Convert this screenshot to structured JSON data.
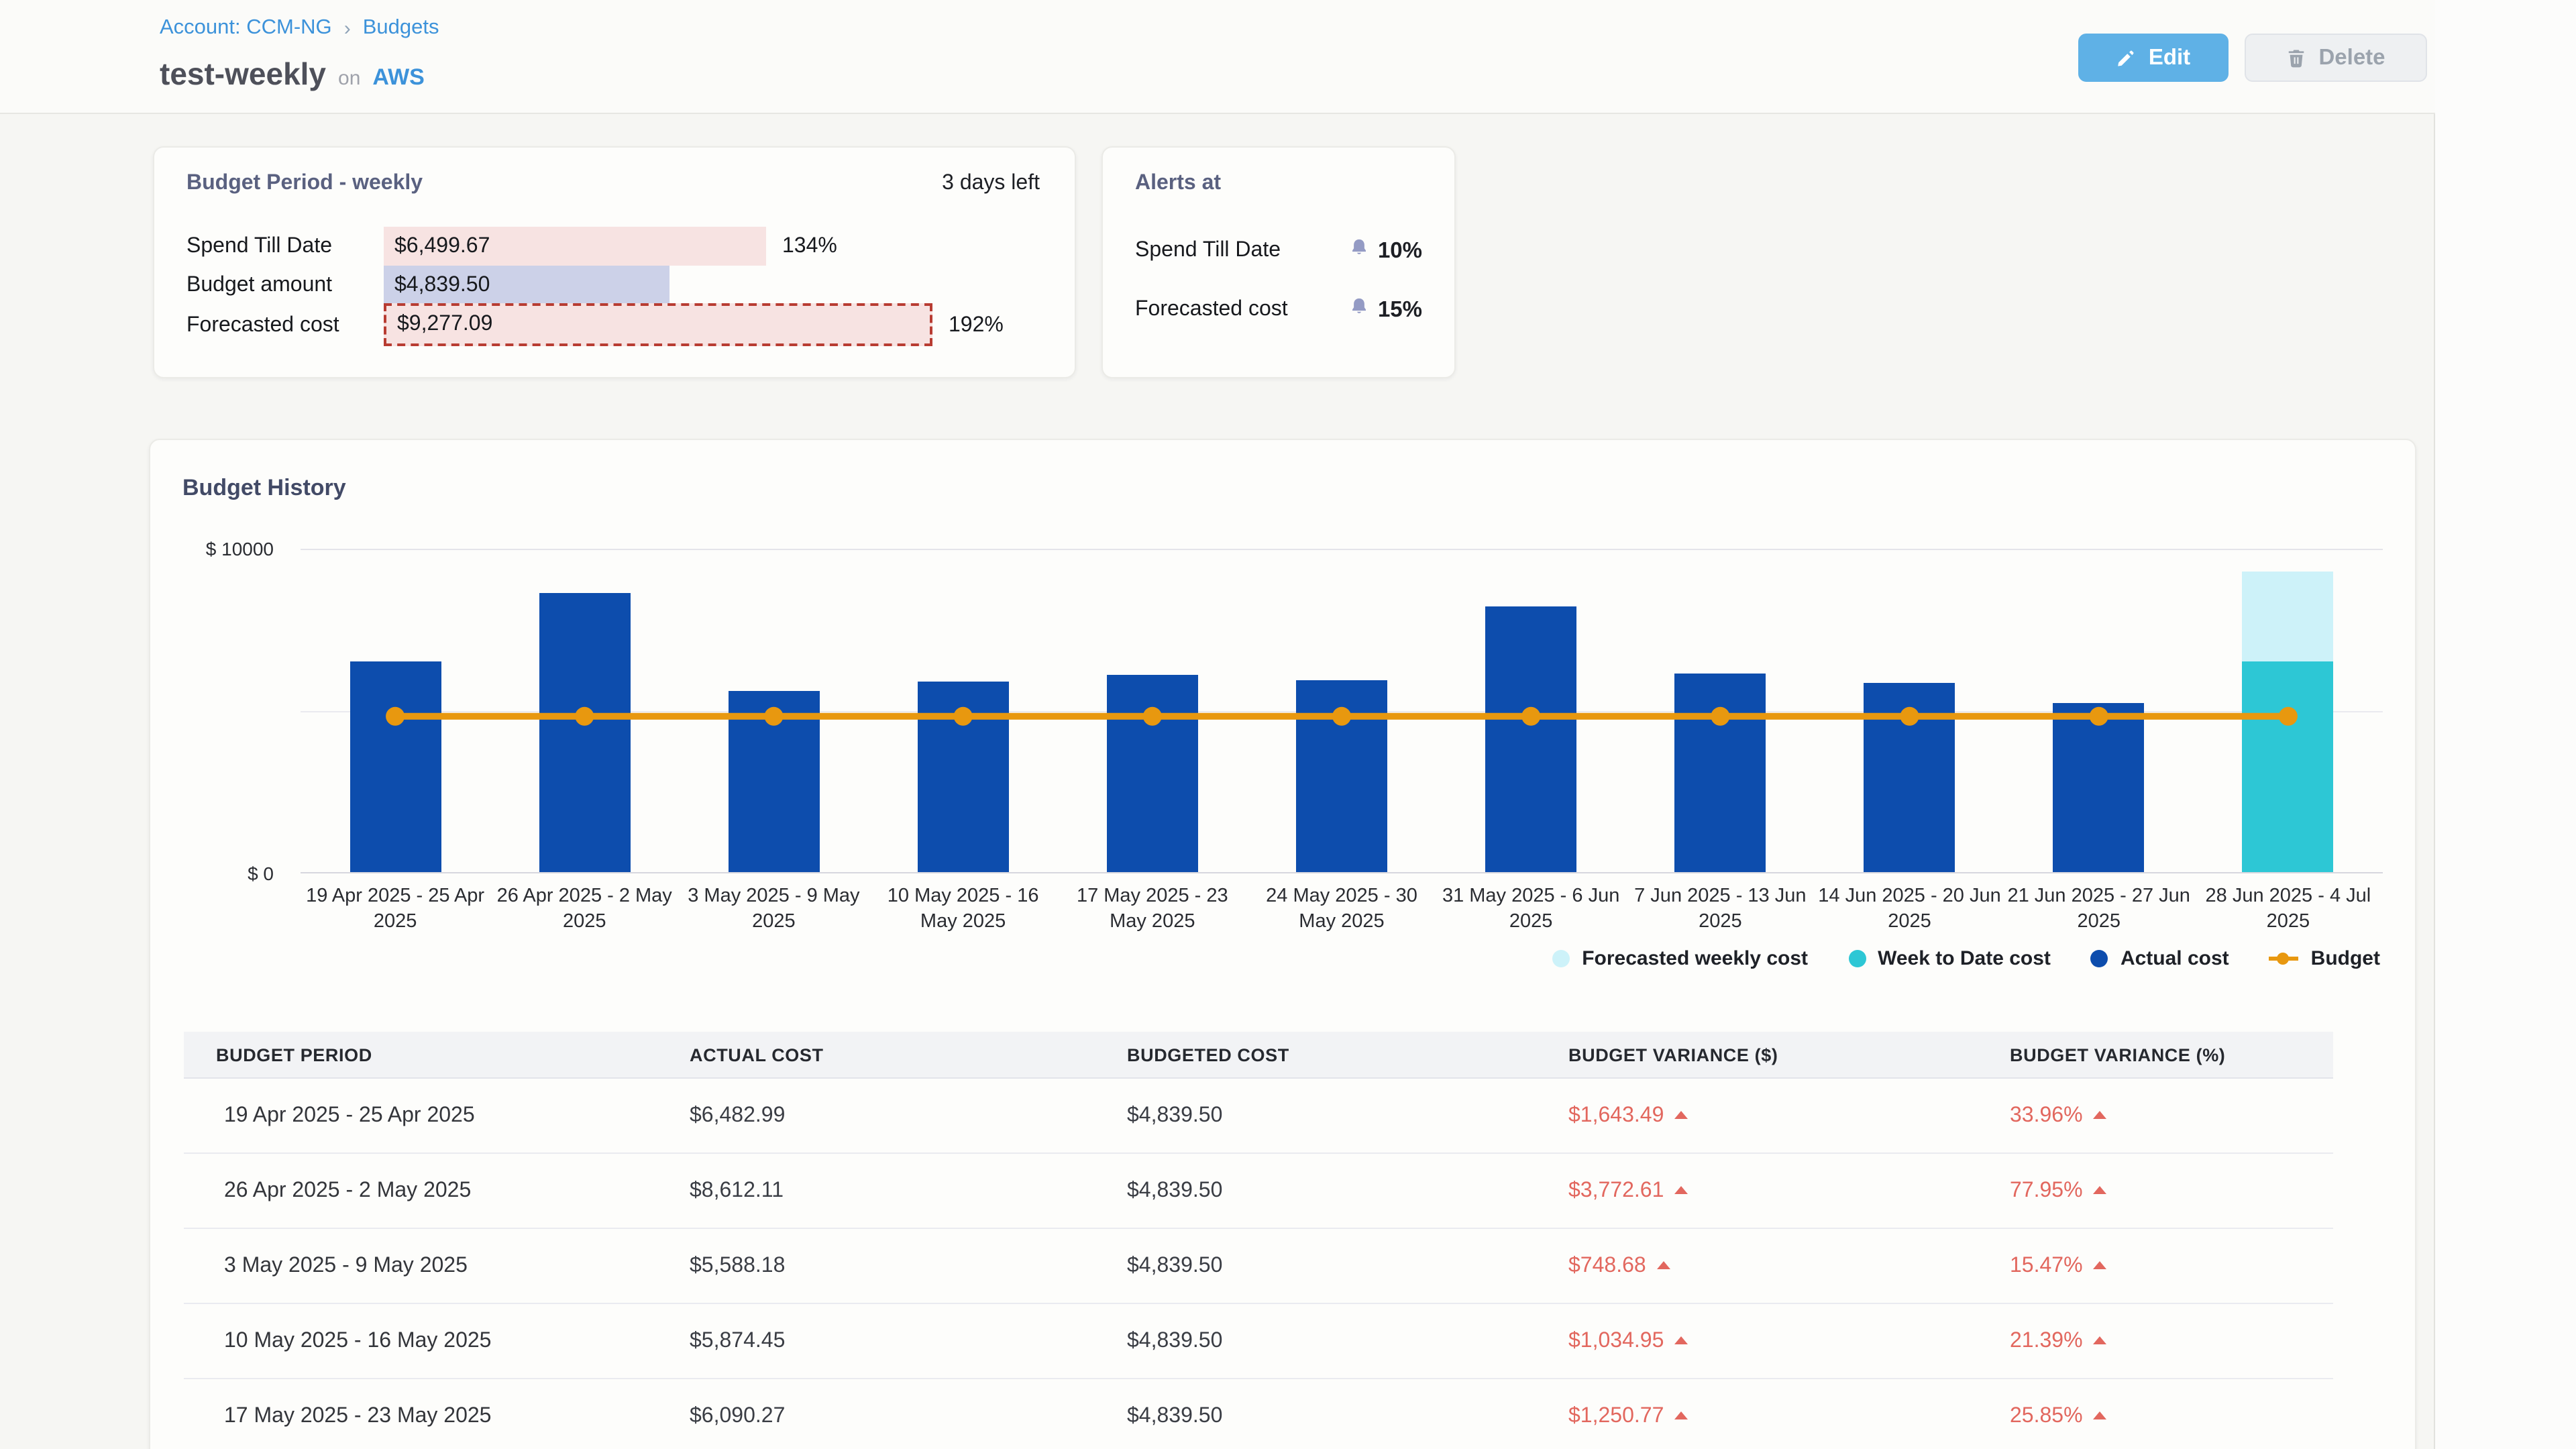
{
  "breadcrumb": {
    "account": "Account: CCM-NG",
    "separator": "›",
    "section": "Budgets"
  },
  "header": {
    "title": "test-weekly",
    "on_label": "on",
    "provider": "AWS"
  },
  "actions": {
    "edit_label": "Edit",
    "delete_label": "Delete"
  },
  "budget_period_card": {
    "title": "Budget Period - weekly",
    "days_left": "3 days left",
    "rows": [
      {
        "label": "Spend Till Date",
        "value": "$6,499.67",
        "percent": "134%",
        "style": "pink",
        "width_pct": 134
      },
      {
        "label": "Budget amount",
        "value": "$4,839.50",
        "percent": "",
        "style": "lavender",
        "width_pct": 100
      },
      {
        "label": "Forecasted cost",
        "value": "$9,277.09",
        "percent": "192%",
        "style": "pink-dashed",
        "width_pct": 192
      }
    ]
  },
  "alerts_card": {
    "title": "Alerts at",
    "rows": [
      {
        "label": "Spend Till Date",
        "threshold": "10%"
      },
      {
        "label": "Forecasted cost",
        "threshold": "15%"
      }
    ]
  },
  "chart": {
    "title": "Budget History",
    "y_axis": {
      "top_label": "$ 10000",
      "bottom_label": "$ 0"
    },
    "legend": [
      {
        "label": "Forecasted weekly cost",
        "color": "#cdf2f9",
        "type": "dot"
      },
      {
        "label": "Week to Date cost",
        "color": "#2dc7d5",
        "type": "dot"
      },
      {
        "label": "Actual cost",
        "color": "#0d4dad",
        "type": "dot"
      },
      {
        "label": "Budget",
        "color": "#e8980f",
        "type": "line-dot"
      }
    ],
    "chart_data": {
      "type": "bar+line",
      "ylim": [
        0,
        10000
      ],
      "budget_line": 4839.5,
      "categories": [
        "19 Apr 2025 - 25 Apr 2025",
        "26 Apr 2025 - 2 May 2025",
        "3 May 2025 - 9 May 2025",
        "10 May 2025 - 16 May 2025",
        "17 May 2025 - 23 May 2025",
        "24 May 2025 - 30 May 2025",
        "31 May 2025 - 6 Jun 2025",
        "7 Jun 2025 - 13 Jun 2025",
        "14 Jun 2025 - 20 Jun 2025",
        "21 Jun 2025 - 27 Jun 2025",
        "28 Jun 2025 - 4 Jul 2025"
      ],
      "actual_values": [
        6482.99,
        8612.11,
        5588.18,
        5874.45,
        6090.27,
        5900,
        8170,
        6110,
        5840,
        5190,
        null
      ],
      "week_to_date": {
        "index": 10,
        "value": 6499.67
      },
      "forecast": {
        "index": 10,
        "value": 9277.09
      },
      "colors": {
        "actual": "#0d4dad",
        "week_to_date": "#2dc7d5",
        "forecast": "#cdf2f9",
        "budget": "#e8980f"
      }
    }
  },
  "table": {
    "headers": [
      "BUDGET PERIOD",
      "ACTUAL COST",
      "BUDGETED COST",
      "BUDGET VARIANCE ($)",
      "BUDGET VARIANCE (%)"
    ],
    "rows": [
      {
        "period": "19 Apr 2025 - 25 Apr 2025",
        "actual": "$6,482.99",
        "budgeted": "$4,839.50",
        "variance_usd": "$1,643.49",
        "variance_pct": "33.96%"
      },
      {
        "period": "26 Apr 2025 - 2 May 2025",
        "actual": "$8,612.11",
        "budgeted": "$4,839.50",
        "variance_usd": "$3,772.61",
        "variance_pct": "77.95%"
      },
      {
        "period": "3 May 2025 - 9 May 2025",
        "actual": "$5,588.18",
        "budgeted": "$4,839.50",
        "variance_usd": "$748.68",
        "variance_pct": "15.47%"
      },
      {
        "period": "10 May 2025 - 16 May 2025",
        "actual": "$5,874.45",
        "budgeted": "$4,839.50",
        "variance_usd": "$1,034.95",
        "variance_pct": "21.39%"
      },
      {
        "period": "17 May 2025 - 23 May 2025",
        "actual": "$6,090.27",
        "budgeted": "$4,839.50",
        "variance_usd": "$1,250.77",
        "variance_pct": "25.85%"
      }
    ]
  }
}
